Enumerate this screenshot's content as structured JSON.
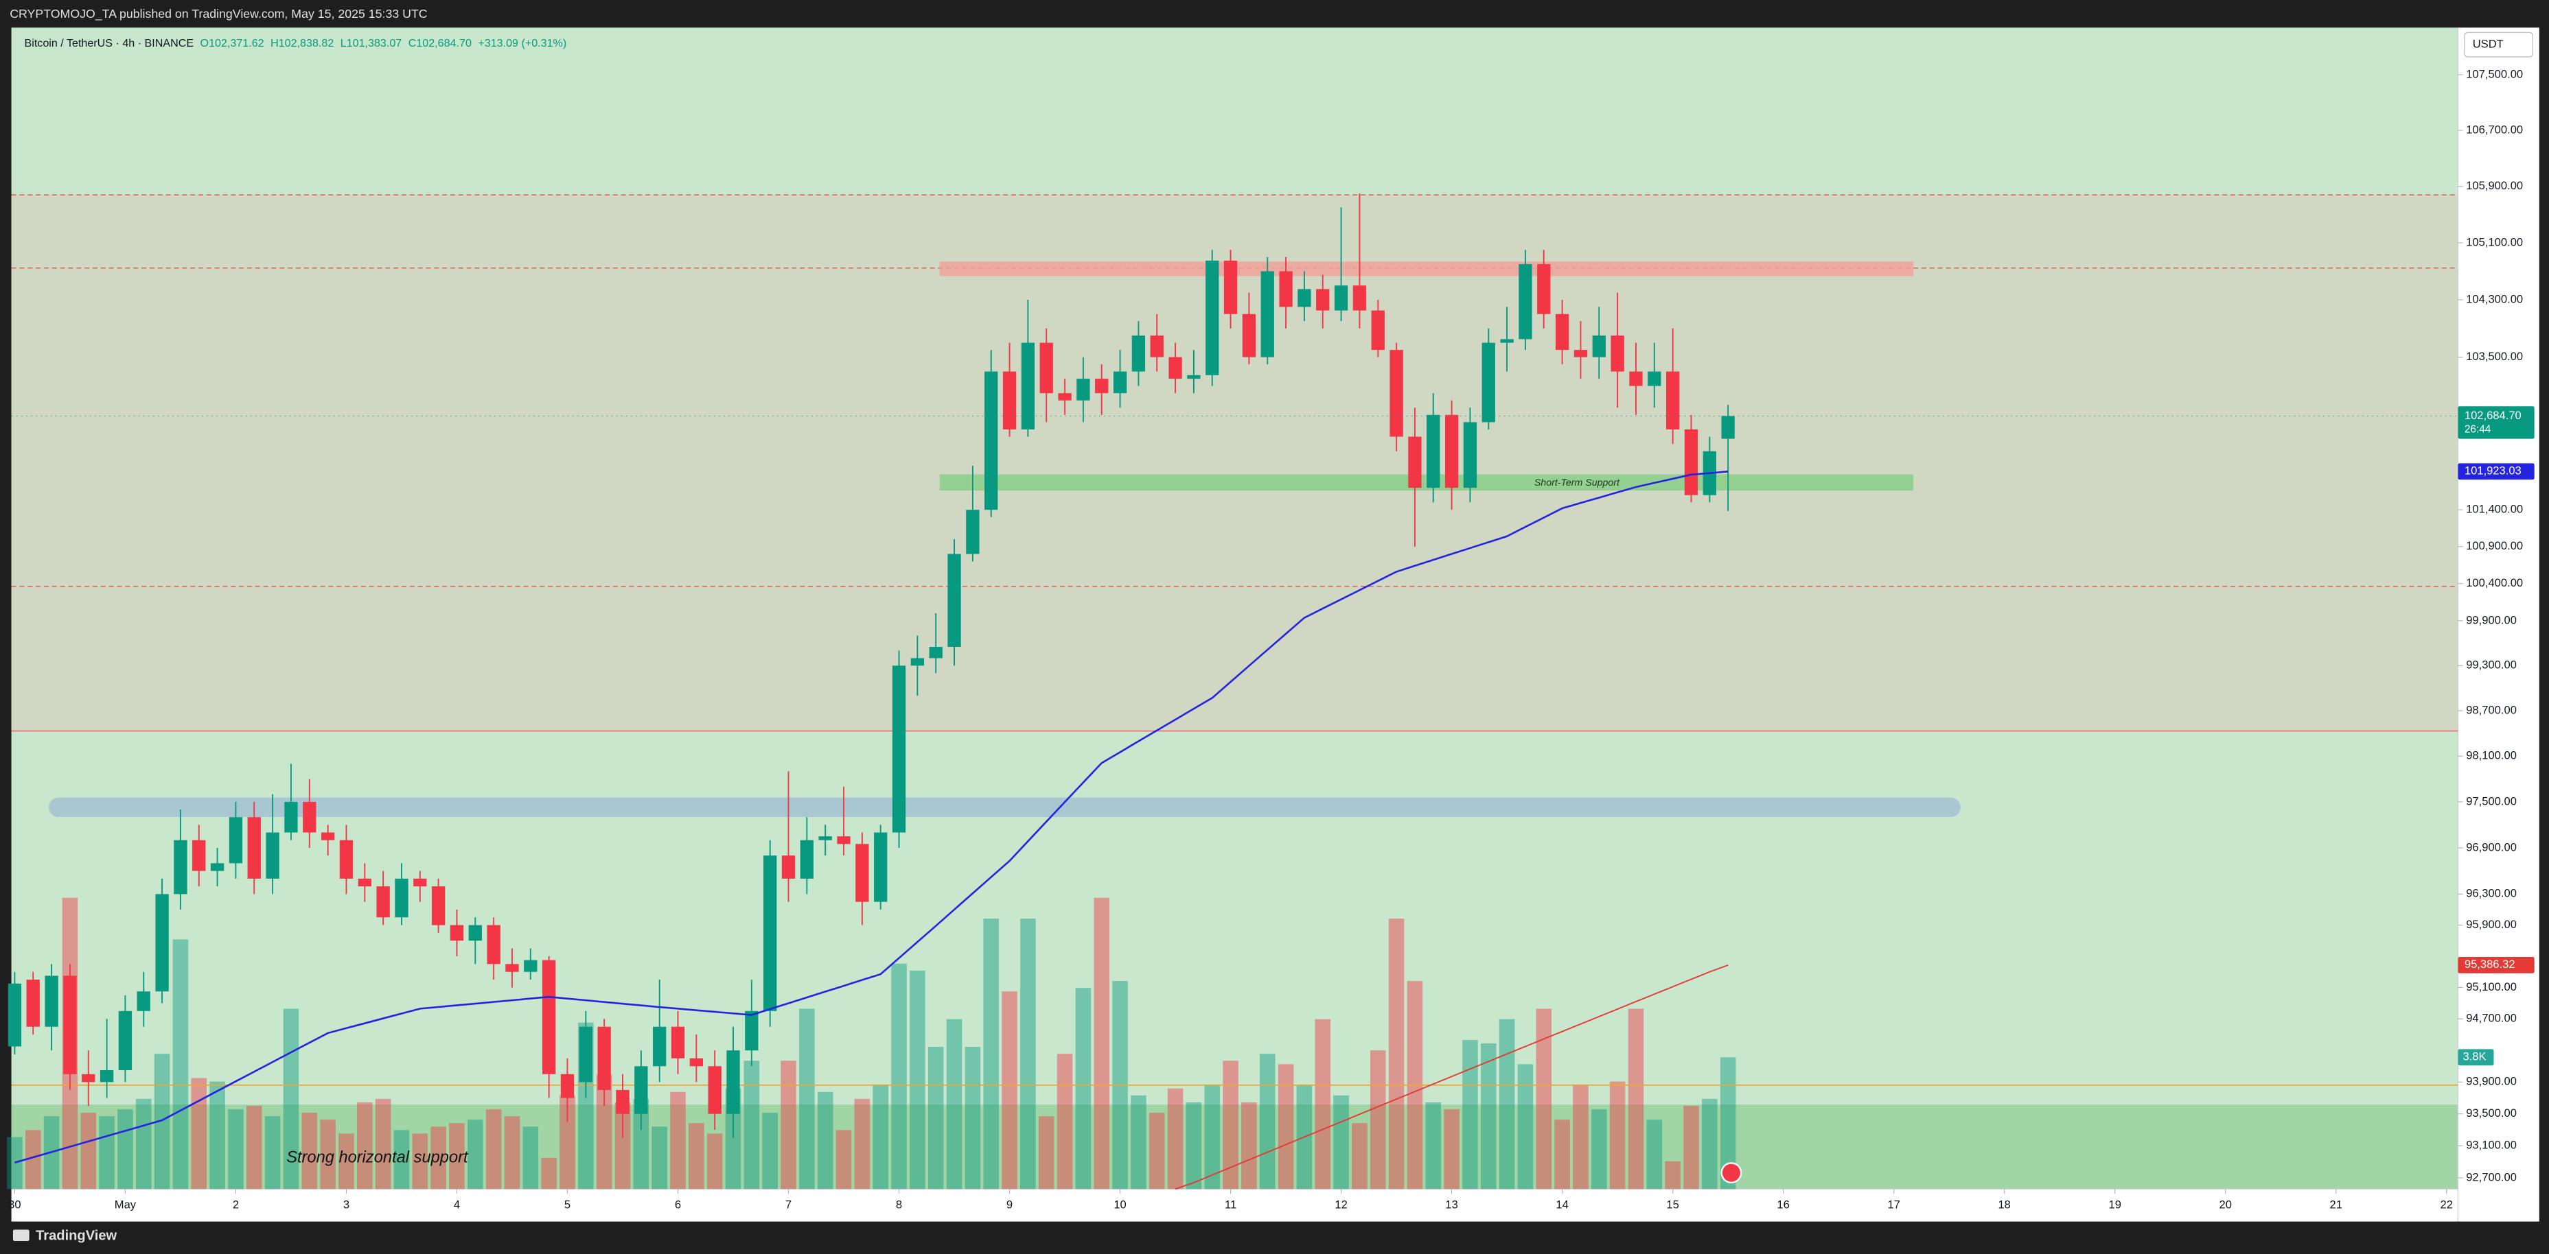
{
  "chart_data": {
    "type": "candlestick",
    "publisher": "CRYPTOMOJO_TA published on TradingView.com, May 15, 2025 15:33 UTC",
    "symbol": "Bitcoin / TetherUS · 4h · BINANCE",
    "legend_labels": [
      "O102,371.62",
      "H102,838.82",
      "L101,383.07",
      "C102,684.70"
    ],
    "change": "+313.09 (+0.31%)",
    "currency": "USDT",
    "brand": "TradingView",
    "close_label": "102,684.70",
    "countdown": "26:44",
    "annotations": [
      "Short-Term Support",
      "Strong horizontal support"
    ],
    "up_color": "#089981",
    "down_color": "#f23645",
    "log_scale": true,
    "ylim": [
      92561,
      108182
    ],
    "yticks": [
      {
        "value": 107500,
        "label": "107,500.00"
      },
      {
        "value": 106700,
        "label": "106,700.00"
      },
      {
        "value": 105900,
        "label": "105,900.00"
      },
      {
        "value": 105100,
        "label": "105,100.00"
      },
      {
        "value": 104300,
        "label": "104,300.00"
      },
      {
        "value": 103500,
        "label": "103,500.00"
      },
      {
        "value": 101400,
        "label": "101,400.00"
      },
      {
        "value": 100900,
        "label": "100,900.00"
      },
      {
        "value": 100400,
        "label": "100,400.00"
      },
      {
        "value": 99900,
        "label": "99,900.00"
      },
      {
        "value": 99300,
        "label": "99,300.00"
      },
      {
        "value": 98700,
        "label": "98,700.00"
      },
      {
        "value": 98100,
        "label": "98,100.00"
      },
      {
        "value": 97500,
        "label": "97,500.00"
      },
      {
        "value": 96900,
        "label": "96,900.00"
      },
      {
        "value": 96300,
        "label": "96,300.00"
      },
      {
        "value": 95900,
        "label": "95,900.00"
      },
      {
        "value": 95100,
        "label": "95,100.00"
      },
      {
        "value": 94700,
        "label": "94,700.00"
      },
      {
        "value": 93900,
        "label": "93,900.00"
      },
      {
        "value": 93500,
        "label": "93,500.00"
      },
      {
        "value": 93100,
        "label": "93,100.00"
      },
      {
        "value": 92700,
        "label": "92,700.00"
      }
    ],
    "xlim": [
      -0.18,
      132.62
    ],
    "xticks": [
      {
        "value": 0,
        "label": "30"
      },
      {
        "value": 6,
        "label": "May"
      },
      {
        "value": 12,
        "label": "2"
      },
      {
        "value": 18,
        "label": "3"
      },
      {
        "value": 24,
        "label": "4"
      },
      {
        "value": 30,
        "label": "5"
      },
      {
        "value": 36,
        "label": "6"
      },
      {
        "value": 42,
        "label": "7"
      },
      {
        "value": 48,
        "label": "8"
      },
      {
        "value": 54,
        "label": "9"
      },
      {
        "value": 60,
        "label": "10"
      },
      {
        "value": 66,
        "label": "11"
      },
      {
        "value": 72,
        "label": "12"
      },
      {
        "value": 78,
        "label": "13"
      },
      {
        "value": 84,
        "label": "14"
      },
      {
        "value": 90,
        "label": "15"
      },
      {
        "value": 96,
        "label": "16"
      },
      {
        "value": 102,
        "label": "17"
      },
      {
        "value": 108,
        "label": "18"
      },
      {
        "value": 114,
        "label": "19"
      },
      {
        "value": 120,
        "label": "20"
      },
      {
        "value": 126,
        "label": "21"
      },
      {
        "value": 132,
        "label": "22"
      }
    ],
    "open": [
      94350,
      95200,
      94600,
      95250,
      94000,
      93900,
      94050,
      94800,
      95050,
      96300,
      97000,
      96600,
      96700,
      97300,
      96500,
      97100,
      97500,
      97100,
      97000,
      96500,
      96400,
      96000,
      96500,
      96400,
      95900,
      95700,
      95900,
      95400,
      95300,
      95450,
      94000,
      93900,
      94600,
      93800,
      93500,
      94100,
      94600,
      94200,
      94100,
      93500,
      94300,
      94800,
      96800,
      96500,
      97000,
      97050,
      96950,
      96200,
      97100,
      99300,
      99400,
      99550,
      100800,
      101400,
      103300,
      102500,
      103700,
      103000,
      102900,
      103200,
      103000,
      103300,
      103800,
      103500,
      103200,
      103250,
      104850,
      104100,
      103500,
      104700,
      104200,
      104450,
      104150,
      104500,
      104150,
      103600,
      102400,
      101700,
      102700,
      101700,
      102600,
      103700,
      103750,
      104800,
      104100,
      103600,
      103500,
      103800,
      103300,
      103100,
      103300,
      102500,
      101600,
      102371.62
    ],
    "high": [
      95300,
      95300,
      95400,
      95400,
      94300,
      94700,
      95000,
      95300,
      96500,
      97400,
      97200,
      96900,
      97500,
      97500,
      97600,
      98000,
      97800,
      97200,
      97200,
      96700,
      96600,
      96700,
      96600,
      96500,
      96100,
      96000,
      96000,
      95600,
      95600,
      95500,
      94200,
      94800,
      94700,
      94000,
      94300,
      95200,
      94800,
      94500,
      94300,
      94600,
      95200,
      97000,
      97900,
      97300,
      97200,
      97700,
      97100,
      97200,
      99500,
      99700,
      100000,
      101000,
      102000,
      103600,
      103700,
      104300,
      103900,
      103200,
      103500,
      103400,
      103600,
      104000,
      104100,
      103700,
      103600,
      105000,
      105000,
      104400,
      104900,
      104900,
      104700,
      104650,
      105600,
      105800,
      104300,
      103700,
      102800,
      103000,
      102900,
      102800,
      103900,
      104200,
      105000,
      105000,
      104300,
      104000,
      104200,
      104400,
      103700,
      103700,
      103900,
      102700,
      102400,
      102838.82
    ],
    "low": [
      94250,
      94500,
      94300,
      93800,
      93600,
      93700,
      93900,
      94600,
      94900,
      96100,
      96400,
      96400,
      96500,
      96300,
      96300,
      97000,
      96900,
      96800,
      96300,
      96200,
      95900,
      95900,
      96200,
      95800,
      95500,
      95400,
      95200,
      95100,
      95200,
      93700,
      93400,
      93700,
      93600,
      93200,
      93300,
      93900,
      94000,
      93900,
      93300,
      93200,
      94100,
      94600,
      96200,
      96300,
      96800,
      96800,
      95900,
      96100,
      96900,
      98900,
      99200,
      99300,
      100700,
      101300,
      102400,
      102400,
      102600,
      102700,
      102600,
      102700,
      102800,
      103100,
      103300,
      103000,
      103000,
      103100,
      103900,
      103400,
      103400,
      103900,
      104000,
      103900,
      104000,
      103900,
      103500,
      102200,
      100900,
      101500,
      101400,
      101500,
      102500,
      103300,
      103600,
      103900,
      103400,
      103200,
      103200,
      102800,
      102700,
      102800,
      102300,
      101500,
      101500,
      101383.07
    ],
    "close": [
      95150,
      94600,
      95250,
      94000,
      93900,
      94050,
      94800,
      95050,
      96300,
      97000,
      96600,
      96700,
      97300,
      96500,
      97100,
      97500,
      97100,
      97000,
      96500,
      96400,
      96000,
      96500,
      96400,
      95900,
      95700,
      95900,
      95400,
      95300,
      95450,
      94000,
      93700,
      94600,
      93800,
      93500,
      94100,
      94600,
      94200,
      94100,
      93500,
      94300,
      94800,
      96800,
      96500,
      97000,
      97050,
      96950,
      96200,
      97100,
      99300,
      99400,
      99550,
      100800,
      101400,
      103300,
      102500,
      103700,
      103000,
      102900,
      103200,
      103000,
      103300,
      103800,
      103500,
      103200,
      103250,
      104850,
      104100,
      103500,
      104700,
      104200,
      104450,
      104150,
      104500,
      104150,
      103600,
      102400,
      101700,
      102700,
      101700,
      102600,
      103700,
      103750,
      104800,
      104100,
      103600,
      103500,
      103800,
      103300,
      103100,
      103300,
      102500,
      101600,
      102200,
      102684.7
    ],
    "volume": {
      "ylim": [
        0,
        33.5
      ],
      "values": [
        1.5,
        1.7,
        2.1,
        8.4,
        2.2,
        2.1,
        2.3,
        2.6,
        3.9,
        7.2,
        3.2,
        3.1,
        2.3,
        2.4,
        2.1,
        5.2,
        2.2,
        2.0,
        1.6,
        2.5,
        2.6,
        1.7,
        1.6,
        1.8,
        1.9,
        2.0,
        2.3,
        2.1,
        1.8,
        0.9,
        2.7,
        4.8,
        3.3,
        2.5,
        2.6,
        1.8,
        2.8,
        1.9,
        1.6,
        2.9,
        3.7,
        2.2,
        3.7,
        5.2,
        2.8,
        1.7,
        2.6,
        3.0,
        6.5,
        6.3,
        4.1,
        4.9,
        4.1,
        7.8,
        5.7,
        7.8,
        2.1,
        3.9,
        5.8,
        8.4,
        6.0,
        2.7,
        2.2,
        2.9,
        2.5,
        3.0,
        3.7,
        2.5,
        3.9,
        3.6,
        3.0,
        4.9,
        2.7,
        1.9,
        4.0,
        7.8,
        6.0,
        2.5,
        2.3,
        4.3,
        4.2,
        4.9,
        3.6,
        5.2,
        2.0,
        3.0,
        2.3,
        3.1,
        5.2,
        2.0,
        0.8,
        2.4,
        2.6,
        3.8
      ],
      "value_labels": [
        null,
        null,
        null,
        null,
        null,
        null,
        null,
        null,
        null,
        null,
        null,
        null,
        null,
        null,
        null,
        null,
        null,
        null,
        null,
        null,
        null,
        null,
        null,
        null,
        null,
        null,
        null,
        null,
        null,
        null,
        null,
        null,
        null,
        null,
        null,
        null,
        null,
        null,
        null,
        null,
        null,
        null,
        null,
        null,
        null,
        null,
        null,
        null,
        null,
        null,
        null,
        null,
        null,
        null,
        null,
        null,
        null,
        null,
        null,
        null,
        null,
        null,
        null,
        null,
        null,
        null,
        null,
        null,
        null,
        null,
        null,
        null,
        null,
        null,
        null,
        null,
        null,
        null,
        null,
        null,
        null,
        null,
        null,
        null,
        null,
        null,
        null,
        null,
        null,
        null,
        null,
        null,
        null,
        "3.8K"
      ]
    },
    "lines": [
      {
        "color": "#2323e0",
        "label": "101,923.03",
        "values": [
          92890,
          92956,
          93022,
          93088,
          93155,
          93221,
          93287,
          93353,
          93420,
          93542,
          93664,
          93787,
          93909,
          94031,
          94153,
          94276,
          94398,
          94520,
          94582,
          94644,
          94706,
          94768,
          94830,
          94851,
          94873,
          94894,
          94916,
          94937,
          94959,
          94980,
          94958,
          94937,
          94915,
          94893,
          94872,
          94850,
          94830,
          94810,
          94790,
          94770,
          94750,
          94824,
          94899,
          94973,
          95047,
          95121,
          95196,
          95270,
          95477,
          95683,
          95890,
          96100,
          96310,
          96520,
          96730,
          96986,
          97242,
          97498,
          97754,
          98010,
          98153,
          98297,
          98440,
          98583,
          98727,
          98870,
          99084,
          99298,
          99512,
          99726,
          99940,
          100064,
          100188,
          100312,
          100436,
          100560,
          100640,
          100720,
          100800,
          100880,
          100960,
          101040,
          101167,
          101293,
          101420,
          101493,
          101565,
          101638,
          101710,
          101767,
          101823,
          101880,
          101900,
          101923.03
        ]
      },
      {
        "color": "#e53935",
        "label": "95,386.32",
        "values": [
          null,
          null,
          null,
          null,
          null,
          null,
          null,
          null,
          null,
          null,
          null,
          null,
          null,
          null,
          null,
          null,
          null,
          null,
          null,
          null,
          null,
          null,
          null,
          null,
          null,
          null,
          null,
          null,
          null,
          null,
          null,
          null,
          null,
          null,
          null,
          null,
          null,
          null,
          null,
          null,
          null,
          null,
          null,
          null,
          null,
          null,
          null,
          null,
          null,
          null,
          null,
          null,
          null,
          null,
          null,
          null,
          null,
          null,
          null,
          null,
          null,
          null,
          null,
          92561,
          92640,
          92735,
          92830,
          92925,
          93020,
          93115,
          93210,
          93305,
          93400,
          93495,
          93590,
          93685,
          93780,
          93875,
          93970,
          94065,
          94160,
          94255,
          94350,
          94445,
          94540,
          94635,
          94730,
          94825,
          94920,
          95015,
          95110,
          95205,
          95300,
          95386.32
        ]
      }
    ]
  }
}
